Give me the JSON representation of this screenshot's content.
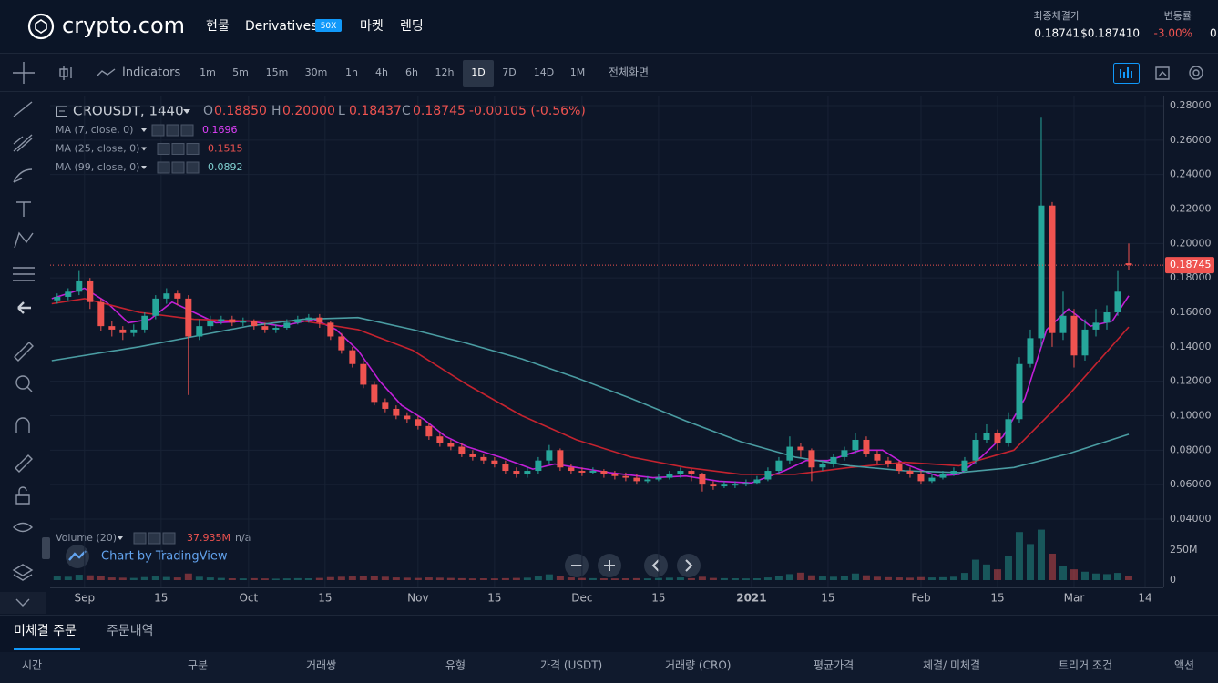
{
  "header": {
    "logo": "crypto.com",
    "nav": [
      "현물",
      "Derivatives",
      "마켓",
      "렌딩"
    ],
    "badge": "50X",
    "last_price_label": "최종체결가",
    "last_price": "0.18741",
    "last_price_usd": "$0.187410",
    "change_label": "변동률",
    "change": "-3.00%",
    "cut_off": "0."
  },
  "toolbar": {
    "indicators": "Indicators",
    "intervals": [
      "1m",
      "5m",
      "15m",
      "30m",
      "1h",
      "4h",
      "6h",
      "12h",
      "1D",
      "7D",
      "14D",
      "1M"
    ],
    "active": "1D",
    "fullscreen": "전체화면"
  },
  "chart_data": {
    "type": "candlestick",
    "symbol": "CROUSDT, 1440",
    "ohlc_legend": [
      {
        "key": "O",
        "value": "0.18850"
      },
      {
        "key": "H",
        "value": "0.20000"
      },
      {
        "key": "L",
        "value": "0.18437"
      },
      {
        "key": "C",
        "value": "0.18745"
      }
    ],
    "change": "-0.00105 (-0.56%)",
    "up_color": "#26a69a",
    "down_color": "#ef5350",
    "xlim": [
      -6.3,
      197
    ],
    "xticks": [
      {
        "value": 0,
        "label": "Sep"
      },
      {
        "value": 14,
        "label": "15"
      },
      {
        "value": 30,
        "label": "Oct"
      },
      {
        "value": 44,
        "label": "15"
      },
      {
        "value": 61,
        "label": "Nov"
      },
      {
        "value": 75,
        "label": "15"
      },
      {
        "value": 91,
        "label": "Dec"
      },
      {
        "value": 105,
        "label": "15"
      },
      {
        "value": 122,
        "label": "2021"
      },
      {
        "value": 136,
        "label": "15"
      },
      {
        "value": 153,
        "label": "Feb"
      },
      {
        "value": 167,
        "label": "15"
      },
      {
        "value": 181,
        "label": "Mar"
      },
      {
        "value": 194,
        "label": "14"
      }
    ],
    "ylim": [
      0.04,
      0.28
    ],
    "yticks": [
      {
        "value": 0.04,
        "label": "0.04000"
      },
      {
        "value": 0.06,
        "label": "0.06000"
      },
      {
        "value": 0.08,
        "label": "0.08000"
      },
      {
        "value": 0.1,
        "label": "0.10000"
      },
      {
        "value": 0.12,
        "label": "0.12000"
      },
      {
        "value": 0.14,
        "label": "0.14000"
      },
      {
        "value": 0.16,
        "label": "0.16000"
      },
      {
        "value": 0.18,
        "label": "0.18000"
      },
      {
        "value": 0.2,
        "label": "0.20000"
      },
      {
        "value": 0.22,
        "label": "0.22000"
      },
      {
        "value": 0.24,
        "label": "0.24000"
      },
      {
        "value": 0.26,
        "label": "0.26000"
      },
      {
        "value": 0.28,
        "label": "0.28000"
      }
    ],
    "grid": true,
    "x": [
      -5,
      -3,
      -1,
      1,
      3,
      5,
      7,
      9,
      11,
      13,
      15,
      17,
      19,
      21,
      23,
      25,
      27,
      29,
      31,
      33,
      35,
      37,
      39,
      41,
      43,
      45,
      47,
      49,
      51,
      53,
      55,
      57,
      59,
      61,
      63,
      65,
      67,
      69,
      71,
      73,
      75,
      77,
      79,
      81,
      83,
      85,
      87,
      89,
      91,
      93,
      95,
      97,
      99,
      101,
      103,
      105,
      107,
      109,
      111,
      113,
      115,
      117,
      119,
      121,
      123,
      125,
      127,
      129,
      131,
      133,
      135,
      137,
      139,
      141,
      143,
      145,
      147,
      149,
      151,
      153,
      155,
      157,
      159,
      161,
      163,
      165,
      167,
      169,
      171,
      173,
      175,
      177,
      179,
      181,
      183,
      185,
      187,
      189,
      191
    ],
    "candles": [
      [
        0.167,
        0.171,
        0.165,
        0.169
      ],
      [
        0.169,
        0.174,
        0.167,
        0.172
      ],
      [
        0.172,
        0.184,
        0.17,
        0.178
      ],
      [
        0.178,
        0.18,
        0.162,
        0.166
      ],
      [
        0.166,
        0.168,
        0.149,
        0.152
      ],
      [
        0.152,
        0.155,
        0.146,
        0.15
      ],
      [
        0.15,
        0.152,
        0.144,
        0.148
      ],
      [
        0.148,
        0.153,
        0.146,
        0.15
      ],
      [
        0.15,
        0.16,
        0.148,
        0.158
      ],
      [
        0.158,
        0.17,
        0.156,
        0.168
      ],
      [
        0.168,
        0.174,
        0.165,
        0.171
      ],
      [
        0.171,
        0.173,
        0.164,
        0.168
      ],
      [
        0.168,
        0.17,
        0.112,
        0.146
      ],
      [
        0.146,
        0.156,
        0.144,
        0.152
      ],
      [
        0.152,
        0.158,
        0.15,
        0.155
      ],
      [
        0.155,
        0.158,
        0.153,
        0.156
      ],
      [
        0.156,
        0.158,
        0.152,
        0.154
      ],
      [
        0.154,
        0.157,
        0.152,
        0.155
      ],
      [
        0.155,
        0.156,
        0.15,
        0.152
      ],
      [
        0.152,
        0.154,
        0.148,
        0.15
      ],
      [
        0.15,
        0.153,
        0.148,
        0.151
      ],
      [
        0.151,
        0.156,
        0.15,
        0.154
      ],
      [
        0.154,
        0.158,
        0.153,
        0.156
      ],
      [
        0.156,
        0.159,
        0.154,
        0.157
      ],
      [
        0.157,
        0.159,
        0.151,
        0.154
      ],
      [
        0.154,
        0.155,
        0.144,
        0.146
      ],
      [
        0.146,
        0.148,
        0.136,
        0.138
      ],
      [
        0.138,
        0.14,
        0.128,
        0.13
      ],
      [
        0.13,
        0.132,
        0.116,
        0.118
      ],
      [
        0.118,
        0.12,
        0.106,
        0.108
      ],
      [
        0.108,
        0.11,
        0.102,
        0.104
      ],
      [
        0.104,
        0.106,
        0.098,
        0.1
      ],
      [
        0.1,
        0.102,
        0.096,
        0.098
      ],
      [
        0.098,
        0.1,
        0.092,
        0.094
      ],
      [
        0.094,
        0.096,
        0.086,
        0.088
      ],
      [
        0.088,
        0.09,
        0.082,
        0.084
      ],
      [
        0.084,
        0.086,
        0.08,
        0.082
      ],
      [
        0.082,
        0.084,
        0.076,
        0.078
      ],
      [
        0.078,
        0.08,
        0.074,
        0.076
      ],
      [
        0.076,
        0.078,
        0.072,
        0.074
      ],
      [
        0.074,
        0.076,
        0.07,
        0.072
      ],
      [
        0.072,
        0.074,
        0.066,
        0.068
      ],
      [
        0.068,
        0.07,
        0.064,
        0.066
      ],
      [
        0.066,
        0.07,
        0.064,
        0.068
      ],
      [
        0.068,
        0.076,
        0.066,
        0.074
      ],
      [
        0.074,
        0.083,
        0.072,
        0.08
      ],
      [
        0.08,
        0.081,
        0.068,
        0.07
      ],
      [
        0.07,
        0.072,
        0.066,
        0.068
      ],
      [
        0.068,
        0.07,
        0.065,
        0.067
      ],
      [
        0.067,
        0.07,
        0.066,
        0.068
      ],
      [
        0.068,
        0.069,
        0.064,
        0.066
      ],
      [
        0.066,
        0.068,
        0.063,
        0.065
      ],
      [
        0.065,
        0.067,
        0.062,
        0.064
      ],
      [
        0.064,
        0.066,
        0.06,
        0.062
      ],
      [
        0.062,
        0.065,
        0.061,
        0.063
      ],
      [
        0.063,
        0.066,
        0.062,
        0.064
      ],
      [
        0.064,
        0.068,
        0.063,
        0.066
      ],
      [
        0.066,
        0.07,
        0.064,
        0.068
      ],
      [
        0.068,
        0.069,
        0.062,
        0.066
      ],
      [
        0.066,
        0.067,
        0.056,
        0.06
      ],
      [
        0.06,
        0.062,
        0.057,
        0.059
      ],
      [
        0.059,
        0.062,
        0.058,
        0.06
      ],
      [
        0.06,
        0.062,
        0.058,
        0.06
      ],
      [
        0.06,
        0.063,
        0.059,
        0.061
      ],
      [
        0.061,
        0.065,
        0.06,
        0.063
      ],
      [
        0.063,
        0.07,
        0.062,
        0.068
      ],
      [
        0.068,
        0.076,
        0.066,
        0.074
      ],
      [
        0.074,
        0.088,
        0.072,
        0.082
      ],
      [
        0.082,
        0.084,
        0.076,
        0.08
      ],
      [
        0.08,
        0.081,
        0.062,
        0.07
      ],
      [
        0.07,
        0.074,
        0.068,
        0.072
      ],
      [
        0.072,
        0.078,
        0.07,
        0.076
      ],
      [
        0.076,
        0.082,
        0.074,
        0.08
      ],
      [
        0.08,
        0.09,
        0.078,
        0.086
      ],
      [
        0.086,
        0.088,
        0.076,
        0.078
      ],
      [
        0.078,
        0.08,
        0.072,
        0.074
      ],
      [
        0.074,
        0.076,
        0.07,
        0.072
      ],
      [
        0.072,
        0.074,
        0.066,
        0.068
      ],
      [
        0.068,
        0.07,
        0.064,
        0.066
      ],
      [
        0.066,
        0.068,
        0.06,
        0.062
      ],
      [
        0.062,
        0.066,
        0.061,
        0.064
      ],
      [
        0.064,
        0.068,
        0.063,
        0.066
      ],
      [
        0.066,
        0.07,
        0.065,
        0.068
      ],
      [
        0.068,
        0.076,
        0.067,
        0.074
      ],
      [
        0.074,
        0.09,
        0.072,
        0.086
      ],
      [
        0.086,
        0.095,
        0.084,
        0.09
      ],
      [
        0.09,
        0.092,
        0.08,
        0.084
      ],
      [
        0.084,
        0.102,
        0.082,
        0.098
      ],
      [
        0.098,
        0.134,
        0.096,
        0.13
      ],
      [
        0.13,
        0.15,
        0.128,
        0.145
      ],
      [
        0.145,
        0.273,
        0.14,
        0.222
      ],
      [
        0.222,
        0.224,
        0.14,
        0.148
      ],
      [
        0.148,
        0.172,
        0.144,
        0.158
      ],
      [
        0.158,
        0.162,
        0.128,
        0.135
      ],
      [
        0.135,
        0.156,
        0.132,
        0.15
      ],
      [
        0.15,
        0.162,
        0.146,
        0.154
      ],
      [
        0.154,
        0.164,
        0.15,
        0.16
      ],
      [
        0.16,
        0.184,
        0.158,
        0.172
      ],
      [
        0.1885,
        0.2,
        0.18437,
        0.18745
      ]
    ],
    "series": [
      {
        "name": "MA (7, close, 0)",
        "color": "#c21fd8",
        "x": [
          -6,
          0,
          4,
          8,
          12,
          16,
          20,
          24,
          30,
          36,
          42,
          46,
          50,
          54,
          58,
          62,
          66,
          70,
          76,
          82,
          86,
          90,
          96,
          104,
          110,
          116,
          122,
          128,
          132,
          136,
          142,
          146,
          150,
          156,
          160,
          164,
          168,
          172,
          176,
          180,
          184,
          188,
          191
        ],
        "values": [
          0.168,
          0.174,
          0.166,
          0.154,
          0.156,
          0.166,
          0.16,
          0.154,
          0.155,
          0.152,
          0.156,
          0.15,
          0.138,
          0.12,
          0.106,
          0.098,
          0.088,
          0.082,
          0.076,
          0.069,
          0.072,
          0.07,
          0.067,
          0.064,
          0.065,
          0.062,
          0.061,
          0.068,
          0.074,
          0.074,
          0.08,
          0.08,
          0.072,
          0.065,
          0.066,
          0.076,
          0.088,
          0.11,
          0.15,
          0.162,
          0.152,
          0.155,
          0.1696
        ]
      },
      {
        "name": "MA (25, close, 0)",
        "color": "#c4232f",
        "x": [
          -6,
          0,
          10,
          20,
          30,
          40,
          50,
          60,
          70,
          80,
          90,
          100,
          110,
          120,
          130,
          140,
          150,
          160,
          170,
          180,
          191
        ],
        "values": [
          0.165,
          0.168,
          0.16,
          0.156,
          0.155,
          0.155,
          0.15,
          0.138,
          0.118,
          0.1,
          0.086,
          0.076,
          0.07,
          0.066,
          0.066,
          0.07,
          0.073,
          0.071,
          0.08,
          0.112,
          0.1515
        ]
      },
      {
        "name": "MA (99, close, 0)",
        "color": "#4a9ca2",
        "x": [
          -6,
          10,
          20,
          30,
          40,
          50,
          60,
          70,
          80,
          90,
          100,
          110,
          120,
          130,
          140,
          150,
          160,
          170,
          180,
          191
        ],
        "values": [
          0.132,
          0.14,
          0.146,
          0.152,
          0.156,
          0.157,
          0.15,
          0.142,
          0.133,
          0.122,
          0.11,
          0.097,
          0.085,
          0.076,
          0.071,
          0.068,
          0.067,
          0.07,
          0.078,
          0.0892
        ]
      }
    ],
    "volume": {
      "name": "Volume (20)",
      "value_label": "37.935M",
      "extra": "n/a",
      "ylim": [
        0,
        432000000
      ],
      "yticks": [
        0,
        {
          "value": 250000000,
          "label": "250M"
        }
      ],
      "values": [
        30000000,
        28000000,
        45000000,
        40000000,
        35000000,
        22000000,
        20000000,
        18000000,
        25000000,
        30000000,
        26000000,
        22000000,
        55000000,
        28000000,
        22000000,
        18000000,
        15000000,
        14000000,
        16000000,
        14000000,
        12000000,
        14000000,
        16000000,
        15000000,
        18000000,
        25000000,
        28000000,
        30000000,
        35000000,
        32000000,
        28000000,
        22000000,
        20000000,
        18000000,
        22000000,
        20000000,
        18000000,
        16000000,
        14000000,
        15000000,
        14000000,
        16000000,
        18000000,
        20000000,
        30000000,
        48000000,
        35000000,
        22000000,
        18000000,
        16000000,
        15000000,
        14000000,
        15000000,
        16000000,
        14000000,
        18000000,
        20000000,
        22000000,
        16000000,
        28000000,
        18000000,
        16000000,
        15000000,
        14000000,
        15000000,
        22000000,
        35000000,
        50000000,
        62000000,
        40000000,
        30000000,
        28000000,
        35000000,
        55000000,
        40000000,
        28000000,
        24000000,
        22000000,
        20000000,
        25000000,
        22000000,
        24000000,
        28000000,
        60000000,
        170000000,
        130000000,
        90000000,
        200000000,
        400000000,
        300000000,
        420000000,
        220000000,
        120000000,
        90000000,
        70000000,
        55000000,
        50000000,
        60000000,
        37935000
      ]
    },
    "credit": "Chart by TradingView"
  },
  "orders": {
    "tabs": [
      "미체결 주문",
      "주문내역"
    ],
    "active": "미체결 주문",
    "columns": [
      "시간",
      "구분",
      "거래쌍",
      "유형",
      "가격 (USDT)",
      "거래량 (CRO)",
      "평균가격",
      "체결/ 미체결",
      "트리거 조건",
      "액션"
    ]
  }
}
